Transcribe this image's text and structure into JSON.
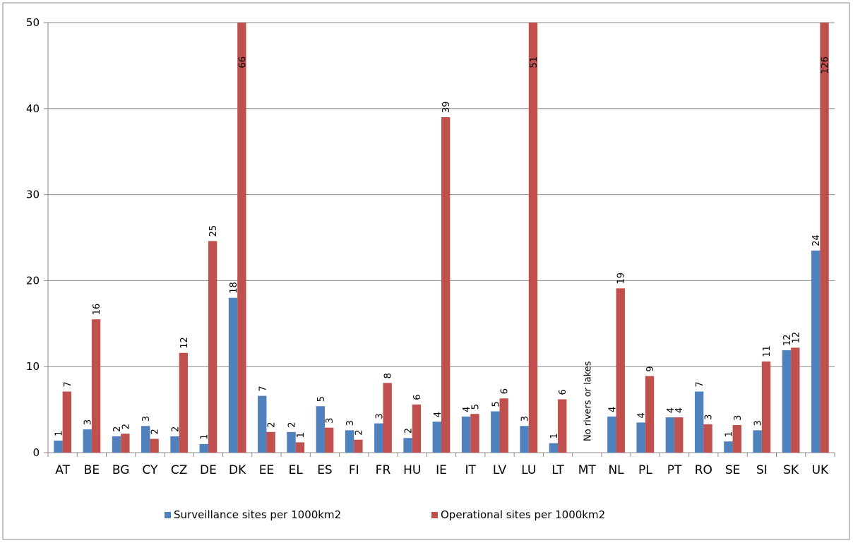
{
  "chart_data": {
    "type": "bar",
    "categories": [
      "AT",
      "BE",
      "BG",
      "CY",
      "CZ",
      "DE",
      "DK",
      "EE",
      "EL",
      "ES",
      "FI",
      "FR",
      "HU",
      "IE",
      "IT",
      "LV",
      "LU",
      "LT",
      "MT",
      "NL",
      "PL",
      "PT",
      "RO",
      "SE",
      "SI",
      "SK",
      "UK"
    ],
    "series": [
      {
        "name": "Surveillance sites per 1000km2",
        "color": "#4f81bd",
        "values": [
          1.4,
          2.7,
          1.9,
          3.1,
          1.9,
          1.0,
          18.0,
          6.6,
          2.4,
          5.4,
          2.6,
          3.4,
          1.7,
          3.6,
          4.2,
          4.8,
          3.1,
          1.1,
          null,
          4.2,
          3.5,
          4.1,
          7.1,
          1.3,
          2.6,
          11.9,
          23.5
        ],
        "value_labels": [
          "1",
          "3",
          "2",
          "3",
          "2",
          "1",
          "18",
          "7",
          "2",
          "5",
          "3",
          "3",
          "2",
          "4",
          "4",
          "5",
          "3",
          "1",
          null,
          "4",
          "4",
          "4",
          "7",
          "1",
          "3",
          "12",
          "24"
        ]
      },
      {
        "name": "Operational sites per 1000km2",
        "color": "#c0504d",
        "values": [
          7.1,
          15.5,
          2.2,
          1.6,
          11.6,
          24.6,
          66,
          2.4,
          1.2,
          2.9,
          1.5,
          8.1,
          5.6,
          39.0,
          4.5,
          6.3,
          51,
          6.2,
          null,
          19.1,
          8.9,
          4.1,
          3.3,
          3.2,
          10.6,
          12.2,
          126
        ],
        "value_labels": [
          "7",
          "16",
          "2",
          "2",
          "12",
          "25",
          "66",
          "2",
          "1",
          "3",
          "2",
          "8",
          "6",
          "39",
          "5",
          "6",
          "51",
          "6",
          null,
          "19",
          "9",
          "4",
          "3",
          "3",
          "11",
          "12",
          "126"
        ]
      }
    ],
    "annotation": "No rivers or lakes",
    "ylim": [
      0,
      50
    ],
    "yticks": [
      0,
      10,
      20,
      30,
      40,
      50
    ],
    "grid": true,
    "legend": "bottom"
  }
}
